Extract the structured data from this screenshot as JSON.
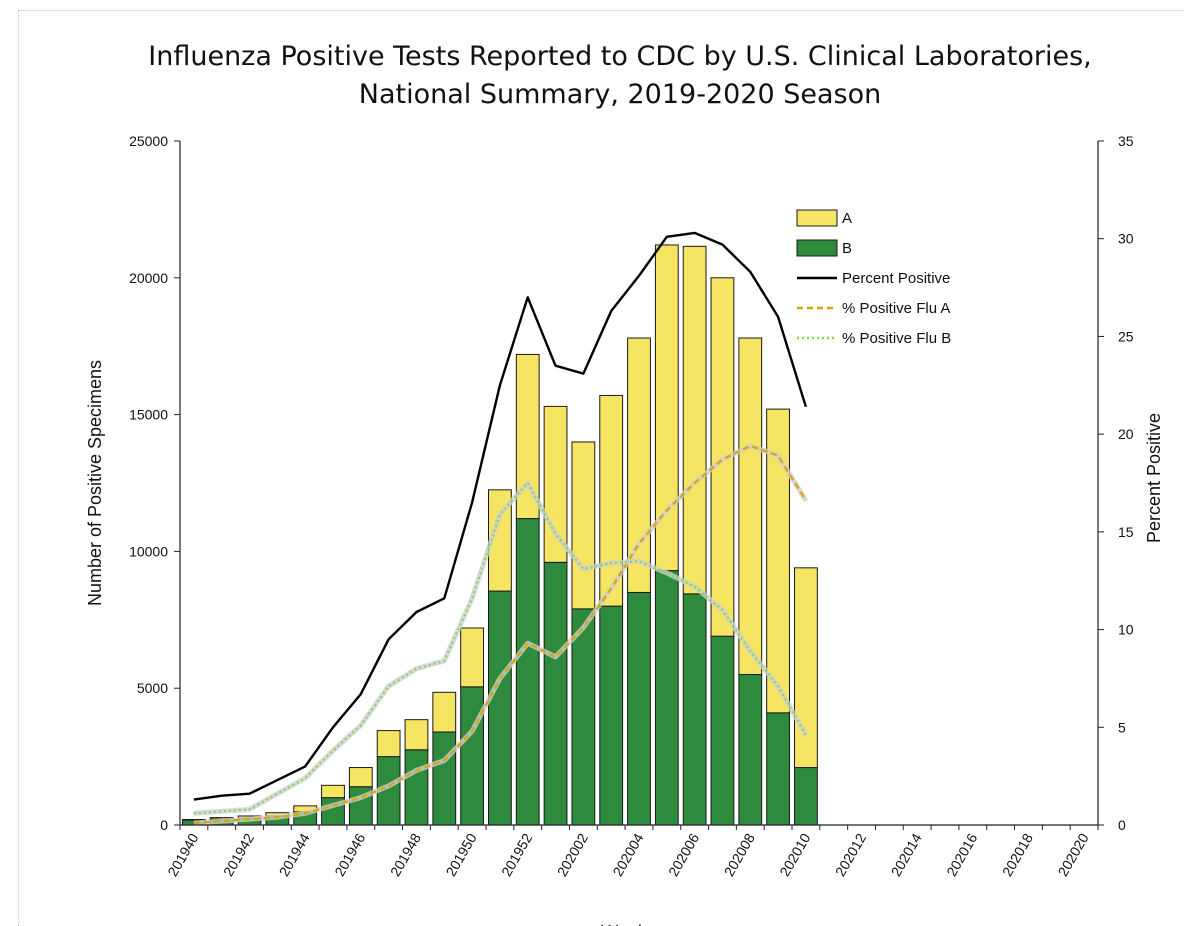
{
  "chart_data": {
    "type": "bar",
    "title": "Influenza Positive Tests Reported to CDC by U.S. Clinical Laboratories,",
    "subtitle": "National Summary,  2019-2020 Season",
    "xlabel": "Week",
    "ylabel": "Number of Positive Specimens",
    "y2label": "Percent Positive",
    "ylim": [
      0,
      25000
    ],
    "y2lim": [
      0,
      35
    ],
    "yticks": [
      "0",
      "5000",
      "10000",
      "15000",
      "20000",
      "25000"
    ],
    "y2ticks": [
      "0",
      "5",
      "10",
      "15",
      "20",
      "25",
      "30",
      "35"
    ],
    "weeks": [
      "201940",
      "201941",
      "201942",
      "201943",
      "201944",
      "201945",
      "201946",
      "201947",
      "201948",
      "201949",
      "201950",
      "201951",
      "201952",
      "202001",
      "202002",
      "202003",
      "202004",
      "202005",
      "202006",
      "202007",
      "202008",
      "202009",
      "202010",
      "202011",
      "202012",
      "202013",
      "202014",
      "202015",
      "202016",
      "202017",
      "202018",
      "202019",
      "202020"
    ],
    "xticks": [
      "201940",
      "201942",
      "201944",
      "201946",
      "201948",
      "201950",
      "201952",
      "202002",
      "202004",
      "202006",
      "202008",
      "202010",
      "202012",
      "202014",
      "202016",
      "202018",
      "202020"
    ],
    "stack_series": [
      {
        "name": "B",
        "color": "#2e8b3e",
        "values": [
          180,
          220,
          250,
          330,
          480,
          1000,
          1400,
          2500,
          2750,
          3400,
          5050,
          8550,
          11200,
          9600,
          7900,
          8000,
          8500,
          9300,
          8450,
          6900,
          5500,
          4100,
          2100
        ]
      },
      {
        "name": "A",
        "color": "#f5e562",
        "values": [
          20,
          50,
          80,
          120,
          220,
          450,
          700,
          950,
          1100,
          1450,
          2150,
          3700,
          6000,
          5700,
          6100,
          7700,
          9300,
          11900,
          12700,
          13100,
          12300,
          11100,
          7300
        ]
      }
    ],
    "line_series": [
      {
        "name": "Percent Positive",
        "color": "#000000",
        "style": "solid",
        "values": [
          1.3,
          1.5,
          1.6,
          2.3,
          3.0,
          5.0,
          6.7,
          9.5,
          10.9,
          11.6,
          16.5,
          22.5,
          27.0,
          23.5,
          23.1,
          26.3,
          28.1,
          30.1,
          30.3,
          29.7,
          28.3,
          26.0,
          21.4
        ]
      },
      {
        "name": "% Positive Flu A",
        "color": "#d9a500",
        "style": "dashed",
        "values": [
          0.1,
          0.2,
          0.3,
          0.4,
          0.6,
          1.0,
          1.4,
          2.0,
          2.8,
          3.3,
          4.8,
          7.5,
          9.3,
          8.6,
          10.1,
          12.1,
          14.4,
          16.1,
          17.5,
          18.7,
          19.4,
          18.9,
          16.6
        ]
      },
      {
        "name": "% Positive Flu B",
        "color": "#7ed957",
        "style": "dotted",
        "values": [
          0.6,
          0.7,
          0.8,
          1.6,
          2.4,
          3.8,
          5.1,
          7.1,
          8.0,
          8.4,
          11.6,
          15.9,
          17.5,
          14.9,
          13.1,
          13.4,
          13.5,
          12.9,
          12.2,
          11.0,
          8.9,
          7.1,
          4.6
        ]
      }
    ],
    "legend": [
      "A",
      "B",
      "Percent Positive",
      "% Positive Flu A",
      "% Positive Flu B"
    ],
    "legend_position": "top-right",
    "grid": false
  }
}
